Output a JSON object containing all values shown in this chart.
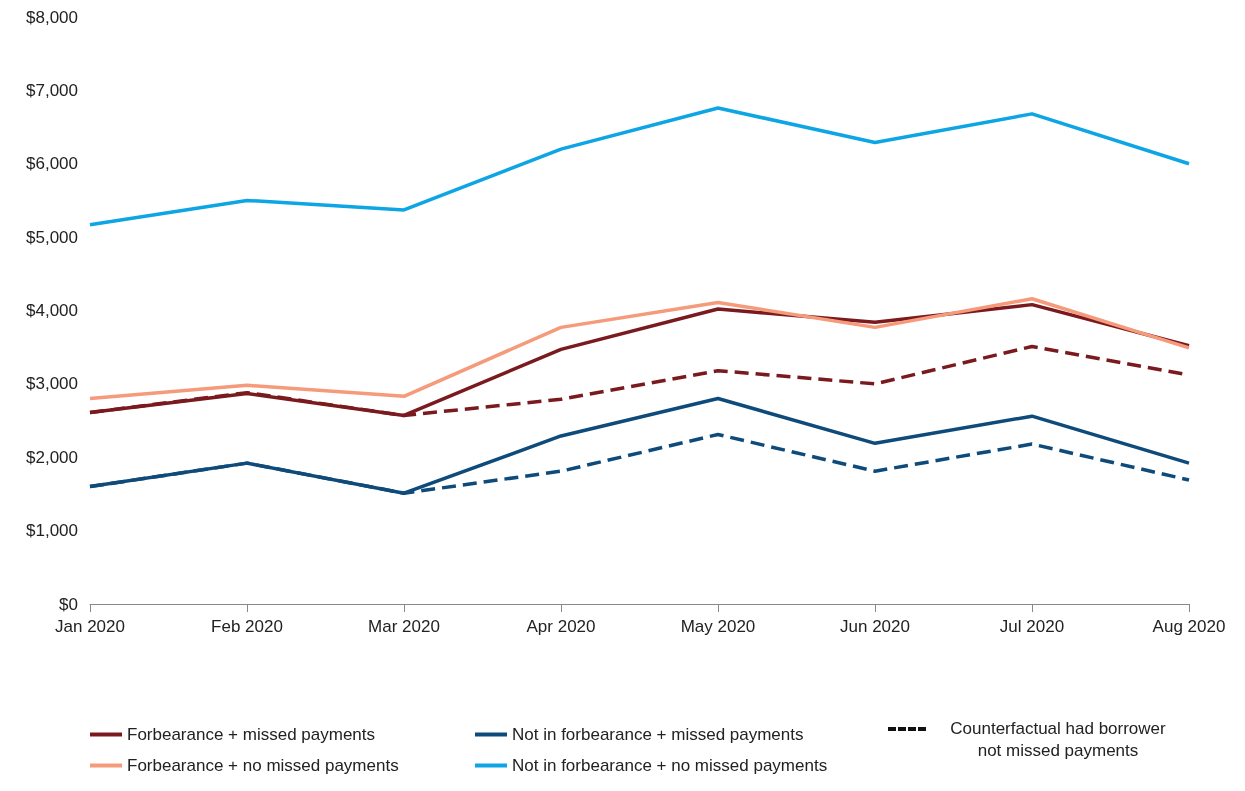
{
  "chart_data": {
    "type": "line",
    "categories": [
      "Jan 2020",
      "Feb 2020",
      "Mar 2020",
      "Apr 2020",
      "May 2020",
      "Jun 2020",
      "Jul 2020",
      "Aug 2020"
    ],
    "ylim": [
      0,
      8000
    ],
    "yticks": [
      {
        "value": 0,
        "label": "$0"
      },
      {
        "value": 1000,
        "label": "$1,000"
      },
      {
        "value": 2000,
        "label": "$2,000"
      },
      {
        "value": 3000,
        "label": "$3,000"
      },
      {
        "value": 4000,
        "label": "$4,000"
      },
      {
        "value": 5000,
        "label": "$5,000"
      },
      {
        "value": 6000,
        "label": "$6,000"
      },
      {
        "value": 7000,
        "label": "$7,000"
      },
      {
        "value": 8000,
        "label": "$8,000"
      }
    ],
    "grid": false,
    "legend": "bottom",
    "marker": "none",
    "series": [
      {
        "name": "Forbearance + missed payments",
        "color": "#7b1a1e",
        "line_style": "solid",
        "values": [
          2610,
          2870,
          2570,
          3470,
          4020,
          3840,
          4080,
          3520
        ]
      },
      {
        "name": "Forbearance + no missed payments",
        "color": "#f59a7a",
        "line_style": "solid",
        "values": [
          2800,
          2980,
          2830,
          3770,
          4110,
          3770,
          4160,
          3490
        ]
      },
      {
        "name": "Not in forbearance + missed payments",
        "color": "#0e4a7a",
        "line_style": "solid",
        "values": [
          1600,
          1920,
          1510,
          2290,
          2800,
          2190,
          2560,
          1920
        ]
      },
      {
        "name": "Not in forbearance + no missed payments",
        "color": "#0ea5e4",
        "line_style": "solid",
        "values": [
          5170,
          5500,
          5370,
          6200,
          6760,
          6290,
          6680,
          6000
        ]
      },
      {
        "color": "#7b1a1e",
        "line_style": "dashed",
        "values": [
          2610,
          2880,
          2570,
          2790,
          3180,
          3000,
          3510,
          3120
        ]
      },
      {
        "color": "#0e4a7a",
        "line_style": "dashed",
        "values": [
          1600,
          1920,
          1510,
          1810,
          2310,
          1810,
          2180,
          1690
        ]
      }
    ],
    "annotations": [
      "Counterfactual had borrower not missed payments"
    ]
  }
}
